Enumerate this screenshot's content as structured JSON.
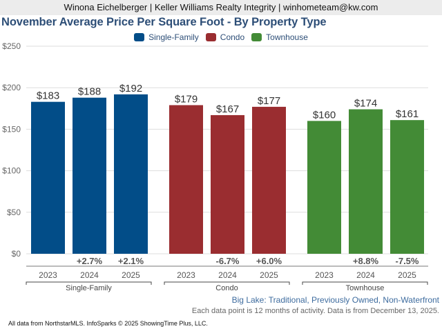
{
  "header": {
    "banner": "Winona Eichelberger | Keller Williams Realty Integrity | winhometeam@kw.com"
  },
  "colors": {
    "single_family": "#024d88",
    "condo": "#9a2d30",
    "townhouse": "#438b36",
    "change_text": "#555555",
    "grid": "#dddddd"
  },
  "chart_data": {
    "type": "bar",
    "title": "November Average Price Per Square Foot - By Property Type",
    "xlabel": "",
    "ylabel": "",
    "ylim": [
      0,
      250
    ],
    "yticks": [
      0,
      50,
      100,
      150,
      200,
      250
    ],
    "ytick_labels": [
      "$0",
      "$50",
      "$100",
      "$150",
      "$200",
      "$250"
    ],
    "grid": true,
    "legend_position": "top-center",
    "categories": [
      "2023",
      "2024",
      "2025"
    ],
    "series": [
      {
        "name": "Single-Family",
        "color": "#024d88",
        "values": [
          183,
          188,
          192
        ],
        "value_labels": [
          "$183",
          "$188",
          "$192"
        ],
        "changes": [
          "",
          "+2.7%",
          "+2.1%"
        ]
      },
      {
        "name": "Condo",
        "color": "#9a2d30",
        "values": [
          179,
          167,
          177
        ],
        "value_labels": [
          "$179",
          "$167",
          "$177"
        ],
        "changes": [
          "",
          "-6.7%",
          "+6.0%"
        ]
      },
      {
        "name": "Townhouse",
        "color": "#438b36",
        "values": [
          160,
          174,
          161
        ],
        "value_labels": [
          "$160",
          "$174",
          "$161"
        ],
        "changes": [
          "",
          "+8.8%",
          "-7.5%"
        ]
      }
    ]
  },
  "footer": {
    "subtitle": "Big Lake: Traditional, Previously Owned, Non-Waterfront",
    "note": "Each data point is 12 months of activity. Data is from December 13, 2025.",
    "source": "All data from NorthstarMLS. InfoSparks © 2025 ShowingTime Plus, LLC."
  }
}
